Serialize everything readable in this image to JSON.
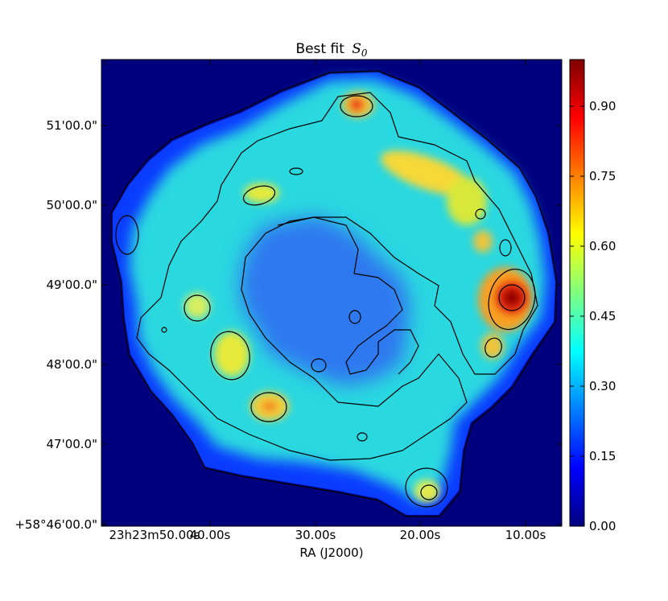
{
  "chart_data": {
    "type": "heatmap",
    "title": {
      "text": "Best fit",
      "symbol": "S",
      "subscript": "0"
    },
    "xlabel": "RA (J2000)",
    "x_tick_labels": [
      "23h23m50.00s",
      "40.00s",
      "30.00s",
      "20.00s",
      "10.00s"
    ],
    "y_tick_labels": [
      "+58°46'00.0\"",
      "47'00.0\"",
      "48'00.0\"",
      "49'00.0\"",
      "50'00.0\"",
      "51'00.0\""
    ],
    "colorbar": {
      "colormap": "jet",
      "range": [
        0.0,
        1.0
      ],
      "ticks": [
        0.0,
        0.15,
        0.3,
        0.45,
        0.6,
        0.75,
        0.9
      ],
      "tick_labels": [
        "0.00",
        "0.15",
        "0.30",
        "0.45",
        "0.60",
        "0.75",
        "0.90"
      ]
    },
    "background_value": 0.0,
    "contour_levels_approx": [
      0.05,
      0.35,
      0.6
    ],
    "shell_value_approx": 0.45,
    "interior_value_approx": 0.22,
    "peaks_approx": [
      {
        "label": "east rim bright knot",
        "ra": "23h23m11s",
        "dec": "+58°48'48\"",
        "value": 1.0
      },
      {
        "label": "north knot",
        "ra": "23h23m26s",
        "dec": "+58°51'15\"",
        "value": 0.9
      },
      {
        "label": "north-east arc",
        "ra": "23h23m18s",
        "dec": "+58°50'25\"",
        "value": 0.72
      },
      {
        "label": "south-west knot",
        "ra": "23h23m35s",
        "dec": "+58°47'25\"",
        "value": 0.7
      },
      {
        "label": "south knot",
        "ra": "23h23m19s",
        "dec": "+58°46'24\"",
        "value": 0.72
      },
      {
        "label": "west knot",
        "ra": "23h23m38s",
        "dec": "+58°48'05\"",
        "value": 0.65
      },
      {
        "label": "east knot",
        "ra": "23h23m13s",
        "dec": "+58°48'15\"",
        "value": 0.7
      }
    ]
  }
}
